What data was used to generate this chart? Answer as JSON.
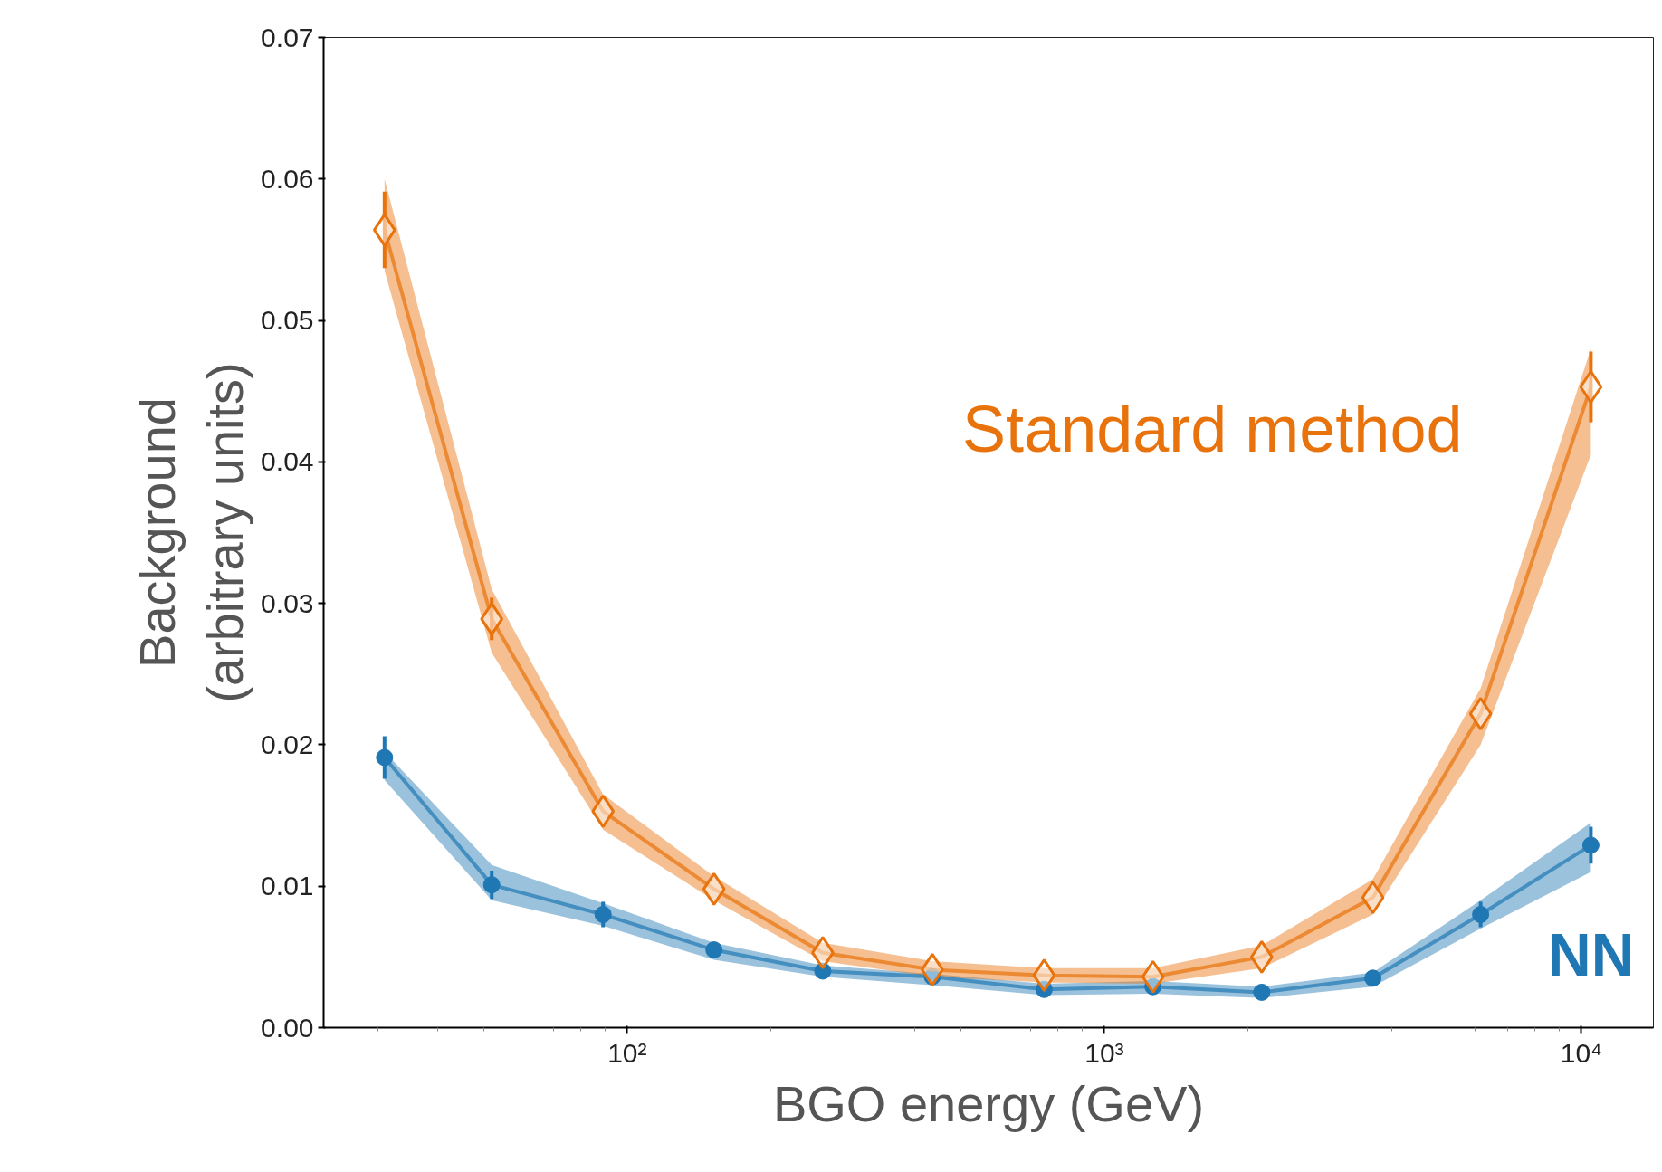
{
  "chart_data": {
    "type": "line",
    "xlabel": "BGO energy (GeV)",
    "ylabel": "Background\n(arbitrary units)",
    "x": [
      31,
      52,
      89,
      152,
      257,
      436,
      748,
      1265,
      2138,
      3656,
      6150,
      10470
    ],
    "log": "x",
    "xlim": [
      23.1,
      14160
    ],
    "xticks": [
      {
        "value": 100,
        "label": "10²"
      },
      {
        "value": 1000,
        "label": "10³"
      },
      {
        "value": 10000,
        "label": "10⁴"
      }
    ],
    "ylim": [
      0,
      0.07
    ],
    "yticks": [
      {
        "value": 0,
        "label": "0.00"
      },
      {
        "value": 0.01,
        "label": "0.01"
      },
      {
        "value": 0.02,
        "label": "0.02"
      },
      {
        "value": 0.03,
        "label": "0.03"
      },
      {
        "value": 0.04,
        "label": "0.04"
      },
      {
        "value": 0.05,
        "label": "0.05"
      },
      {
        "value": 0.06,
        "label": "0.06"
      },
      {
        "value": 0.07,
        "label": "0.07"
      }
    ],
    "grid": false,
    "legend": false,
    "line_style": "solid",
    "series": [
      {
        "name": "NN",
        "color": "#1f77b4",
        "marker": "circle",
        "values": [
          0.0191,
          0.0101,
          0.008,
          0.0055,
          0.004,
          0.0036,
          0.0027,
          0.0029,
          0.0025,
          0.0035,
          0.008,
          0.0129
        ],
        "errors": [
          0.0015,
          0.001,
          0.0009,
          null,
          null,
          null,
          null,
          null,
          null,
          null,
          0.0009,
          0.0013
        ],
        "lower": [
          0.0175,
          0.009,
          0.0072,
          0.0048,
          0.0036,
          0.003,
          0.0023,
          0.0024,
          0.0021,
          0.0029,
          0.007,
          0.011
        ],
        "upper": [
          0.0195,
          0.0115,
          0.0088,
          0.006,
          0.0044,
          0.0038,
          0.0031,
          0.0033,
          0.0029,
          0.0039,
          0.009,
          0.0145
        ]
      },
      {
        "name": "Standard method",
        "color": "#e8720c",
        "marker": "diamond",
        "values": [
          0.0564,
          0.0289,
          0.0153,
          0.0098,
          0.0053,
          0.0041,
          0.0037,
          0.0036,
          0.005,
          0.0092,
          0.0222,
          0.0453
        ],
        "errors": [
          0.0027,
          0.0015,
          null,
          null,
          null,
          null,
          null,
          null,
          null,
          null,
          null,
          0.0025
        ],
        "lower": [
          0.0535,
          0.0265,
          0.014,
          0.009,
          0.0047,
          0.0036,
          0.0032,
          0.0031,
          0.0042,
          0.008,
          0.02,
          0.0405
        ],
        "upper": [
          0.06,
          0.031,
          0.0165,
          0.0107,
          0.006,
          0.0047,
          0.0042,
          0.0042,
          0.0058,
          0.0105,
          0.024,
          0.048
        ]
      }
    ]
  }
}
